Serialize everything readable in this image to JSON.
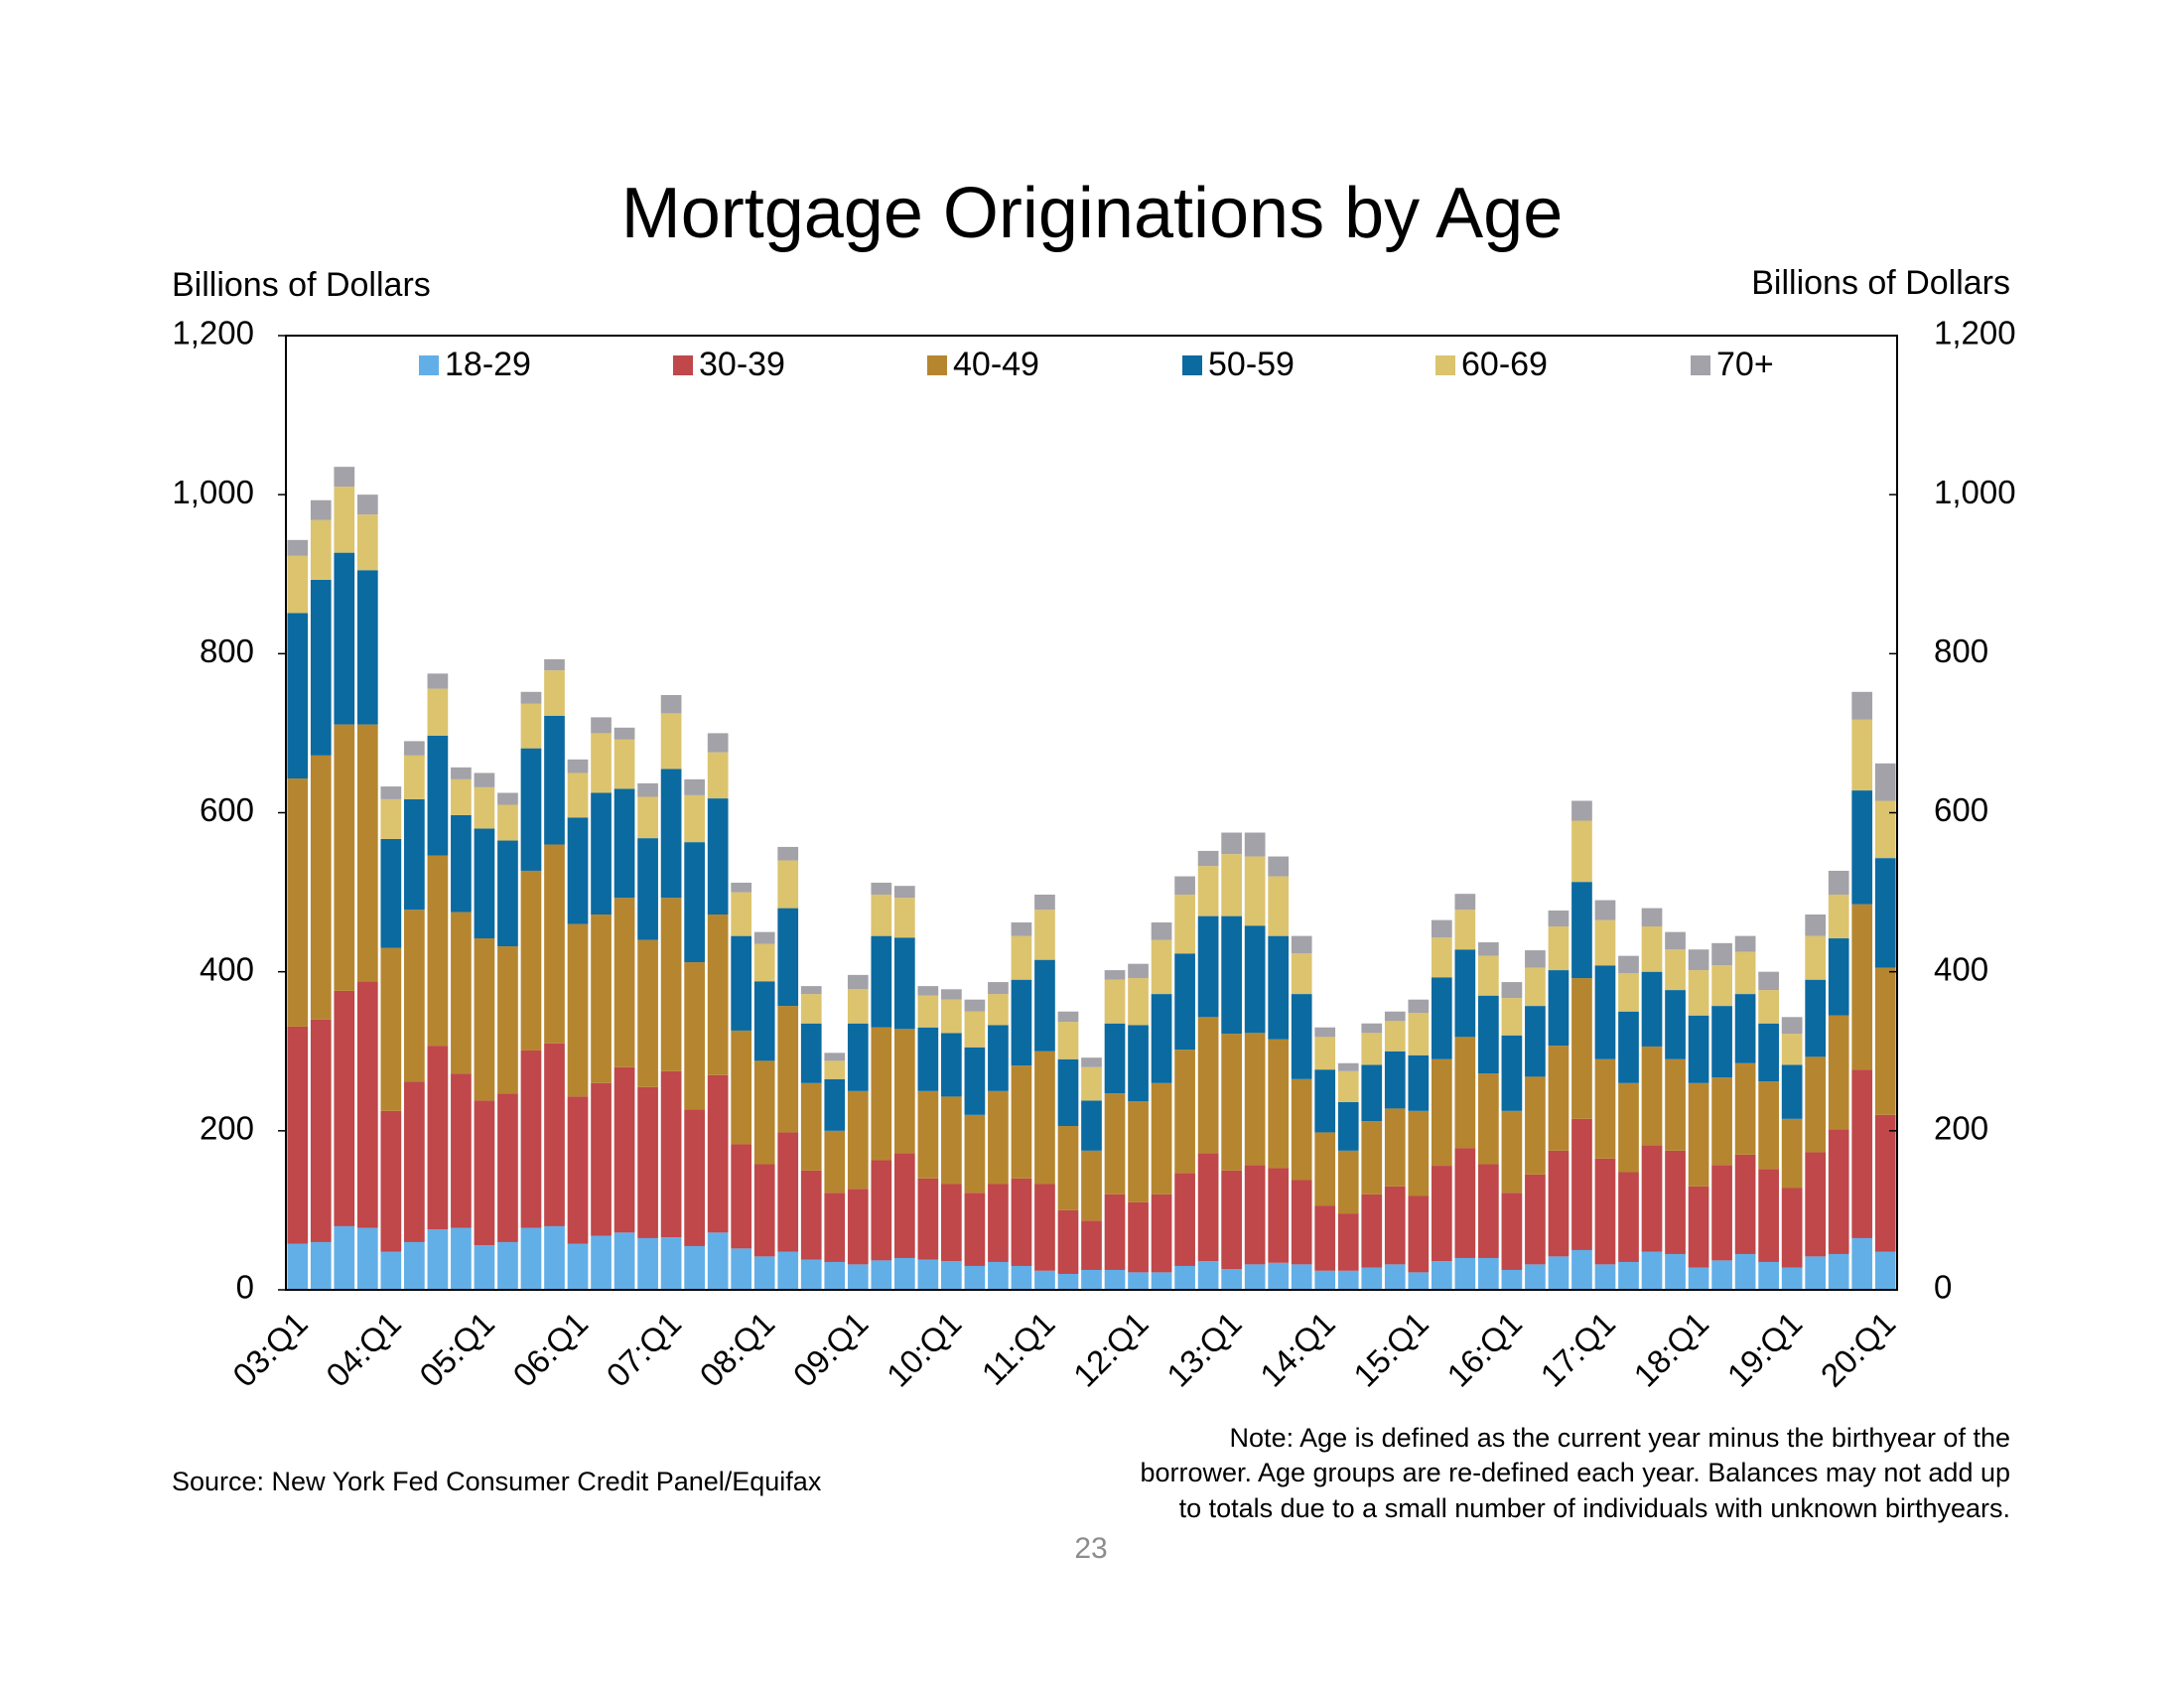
{
  "chart_data": {
    "type": "stacked_bar",
    "title": "Mortgage Originations by Age",
    "y_label": "Billions of Dollars",
    "y2_label": "Billions of Dollars",
    "source": "Source: New York Fed Consumer Credit Panel/Equifax",
    "note": [
      "Note: Age is defined as the current year minus the birthyear of the",
      "borrower. Age groups are re-defined each year. Balances may not add up",
      "to totals due to a small number of individuals with unknown birthyears."
    ],
    "page_number": "23",
    "categories": [
      "03:Q1",
      null,
      null,
      null,
      "04:Q1",
      null,
      null,
      null,
      "05:Q1",
      null,
      null,
      null,
      "06:Q1",
      null,
      null,
      null,
      "07:Q1",
      null,
      null,
      null,
      "08:Q1",
      null,
      null,
      null,
      "09:Q1",
      null,
      null,
      null,
      "10:Q1",
      null,
      null,
      null,
      "11:Q1",
      null,
      null,
      null,
      "12:Q1",
      null,
      null,
      null,
      "13:Q1",
      null,
      null,
      null,
      "14:Q1",
      null,
      null,
      null,
      "15:Q1",
      null,
      null,
      null,
      "16:Q1",
      null,
      null,
      null,
      "17:Q1",
      null,
      null,
      null,
      "18:Q1",
      null,
      null,
      null,
      "19:Q1",
      null,
      null,
      null,
      "20:Q1"
    ],
    "series": [
      {
        "name": "18-29",
        "color": "#62afe8",
        "values": [
          58,
          60,
          80,
          78,
          48,
          60,
          76,
          78,
          56,
          60,
          78,
          80,
          58,
          68,
          72,
          65,
          66,
          55,
          72,
          52,
          42,
          48,
          38,
          35,
          32,
          37,
          40,
          38,
          36,
          30,
          35,
          30,
          24,
          20,
          25,
          25,
          22,
          22,
          30,
          36,
          26,
          32,
          34,
          32,
          24,
          24,
          28,
          32,
          22,
          36,
          40,
          40,
          25,
          32,
          42,
          50,
          32,
          35,
          48,
          45,
          28,
          37,
          45,
          35,
          28,
          42,
          45,
          65,
          48
        ]
      },
      {
        "name": "30-39",
        "color": "#c0474a",
        "values": [
          273,
          280,
          296,
          310,
          177,
          202,
          231,
          194,
          182,
          187,
          223,
          230,
          185,
          192,
          208,
          190,
          209,
          172,
          198,
          131,
          116,
          150,
          112,
          87,
          95,
          126,
          132,
          102,
          97,
          92,
          98,
          110,
          109,
          80,
          62,
          95,
          88,
          98,
          117,
          136,
          124,
          125,
          119,
          106,
          82,
          72,
          92,
          98,
          96,
          120,
          138,
          118,
          97,
          113,
          133,
          165,
          133,
          113,
          134,
          130,
          102,
          120,
          125,
          117,
          100,
          131,
          157,
          212,
          172
        ]
      },
      {
        "name": "40-49",
        "color": "#b5862f",
        "values": [
          312,
          332,
          335,
          323,
          205,
          216,
          239,
          203,
          204,
          185,
          226,
          250,
          217,
          212,
          213,
          185,
          218,
          185,
          202,
          143,
          130,
          159,
          110,
          78,
          123,
          167,
          156,
          110,
          110,
          98,
          117,
          142,
          167,
          106,
          88,
          127,
          127,
          140,
          155,
          171,
          172,
          166,
          162,
          127,
          92,
          79,
          92,
          98,
          107,
          134,
          140,
          114,
          103,
          123,
          132,
          177,
          125,
          112,
          124,
          115,
          130,
          110,
          115,
          110,
          87,
          120,
          143,
          208,
          185
        ]
      },
      {
        "name": "50-59",
        "color": "#0b6aa0",
        "values": [
          208,
          221,
          216,
          194,
          137,
          139,
          151,
          122,
          138,
          133,
          154,
          162,
          134,
          153,
          137,
          128,
          162,
          151,
          146,
          119,
          100,
          123,
          75,
          65,
          85,
          115,
          115,
          80,
          80,
          85,
          83,
          108,
          115,
          84,
          63,
          88,
          96,
          112,
          121,
          127,
          148,
          135,
          130,
          107,
          79,
          61,
          71,
          72,
          70,
          103,
          110,
          98,
          95,
          89,
          95,
          121,
          118,
          90,
          94,
          87,
          85,
          90,
          87,
          73,
          68,
          97,
          97,
          143,
          138
        ]
      },
      {
        "name": "60-69",
        "color": "#dcc36e",
        "values": [
          72,
          75,
          83,
          70,
          50,
          55,
          59,
          45,
          52,
          45,
          56,
          57,
          56,
          75,
          62,
          52,
          70,
          59,
          58,
          55,
          47,
          60,
          37,
          23,
          43,
          52,
          50,
          40,
          42,
          45,
          39,
          55,
          63,
          47,
          42,
          55,
          59,
          68,
          74,
          63,
          78,
          87,
          75,
          51,
          41,
          39,
          40,
          38,
          53,
          50,
          50,
          50,
          47,
          48,
          55,
          77,
          57,
          48,
          57,
          51,
          57,
          51,
          53,
          42,
          39,
          55,
          55,
          89,
          72
        ]
      },
      {
        "name": "70+",
        "color": "#a2a2a8",
        "values": [
          20,
          25,
          25,
          25,
          16,
          18,
          19,
          15,
          18,
          15,
          15,
          14,
          17,
          20,
          15,
          17,
          23,
          20,
          24,
          12,
          15,
          17,
          10,
          10,
          18,
          15,
          15,
          12,
          13,
          15,
          15,
          17,
          19,
          13,
          12,
          12,
          18,
          22,
          23,
          19,
          27,
          30,
          25,
          22,
          12,
          10,
          12,
          12,
          17,
          22,
          20,
          17,
          20,
          22,
          20,
          25,
          25,
          22,
          23,
          22,
          26,
          28,
          20,
          23,
          21,
          27,
          30,
          35,
          47
        ]
      }
    ],
    "ylim": [
      0,
      1200
    ],
    "yticks": [
      0,
      200,
      400,
      600,
      800,
      {
        "value": 1000,
        "label": "1,000"
      },
      {
        "value": 1200,
        "label": "1,200"
      }
    ],
    "y2lim": [
      0,
      1200
    ],
    "y2ticks": [
      0,
      200,
      400,
      600,
      800,
      {
        "value": 1000,
        "label": "1,000"
      },
      {
        "value": 1200,
        "label": "1,200"
      }
    ],
    "legend": "top"
  }
}
